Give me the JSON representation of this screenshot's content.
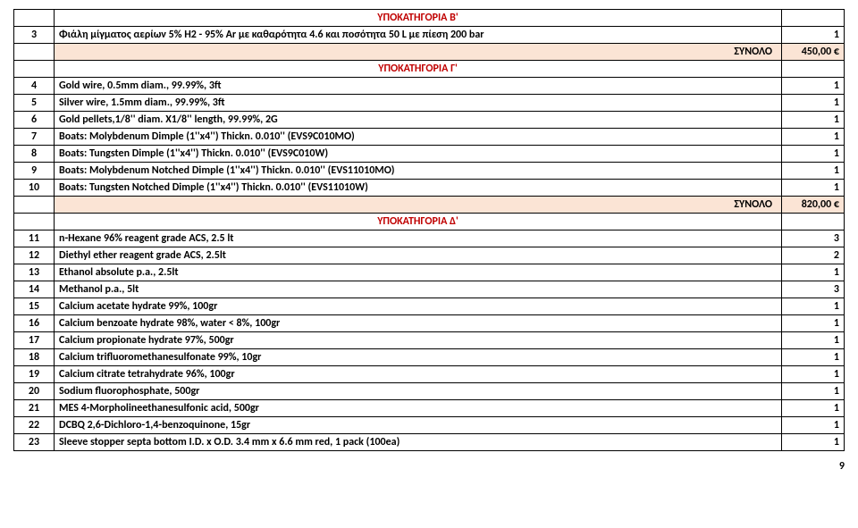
{
  "colors": {
    "header_text": "#c00000",
    "total_bg": "#fbe4d5",
    "border": "#000000"
  },
  "sections": [
    {
      "title": "ΥΠΟΚΑΤΗΓΟΡΙΑ Β'",
      "rows": [
        {
          "num": "3",
          "desc": "Φιάλη μίγματος αερίων 5% Η2 - 95% Ar με καθαρότητα 4.6 και ποσότητα 50 L με πίεση  200 bar",
          "qty": "1"
        }
      ],
      "total_label": "ΣΥΝΟΛΟ",
      "total_value": "450,00 €"
    },
    {
      "title": "ΥΠΟΚΑΤΗΓΟΡΙΑ Γ'",
      "rows": [
        {
          "num": "4",
          "desc": "Gold wire, 0.5mm diam., 99.99%, 3ft",
          "qty": "1"
        },
        {
          "num": "5",
          "desc": "Silver wire, 1.5mm diam., 99.99%, 3ft",
          "qty": "1"
        },
        {
          "num": "6",
          "desc": "Gold pellets,1/8'' diam. X1/8'' length, 99.99%, 2G",
          "qty": "1"
        },
        {
          "num": "7",
          "desc": "Boats: Molybdenum Dimple (1''x4'') Thickn. 0.010'' (EVS9C010MO)",
          "qty": "1"
        },
        {
          "num": "8",
          "desc": "Boats: Tungsten Dimple (1''x4'') Thickn. 0.010'' (EVS9C010W)",
          "qty": "1"
        },
        {
          "num": "9",
          "desc": "Boats: Molybdenum Notched Dimple (1''x4'') Thickn. 0.010'' (EVS11010MO)",
          "qty": "1"
        },
        {
          "num": "10",
          "desc": "Boats: Tungsten Notched Dimple (1''x4'') Thickn. 0.010'' (EVS11010W)",
          "qty": "1"
        }
      ],
      "total_label": "ΣΥΝΟΛΟ",
      "total_value": "820,00 €"
    },
    {
      "title": "ΥΠΟΚΑΤΗΓΟΡΙΑ Δ'",
      "rows": [
        {
          "num": "11",
          "desc": "n-Hexane 96% reagent grade ACS, 2.5 lt",
          "qty": "3"
        },
        {
          "num": "12",
          "desc": "Diethyl ether reagent grade ACS, 2.5lt",
          "qty": "2"
        },
        {
          "num": "13",
          "desc": "Ethanol absolute p.a., 2.5lt",
          "qty": "1"
        },
        {
          "num": "14",
          "desc": "Methanol p.a., 5lt",
          "qty": "3"
        },
        {
          "num": "15",
          "desc": "Calcium acetate hydrate 99%, 100gr",
          "qty": "1"
        },
        {
          "num": "16",
          "desc": "Calcium benzoate hydrate 98%, water < 8%, 100gr",
          "qty": "1"
        },
        {
          "num": "17",
          "desc": "Calcium propionate hydrate 97%, 500gr",
          "qty": "1"
        },
        {
          "num": "18",
          "desc": "Calcium trifluoromethanesulfonate 99%, 10gr",
          "qty": "1"
        },
        {
          "num": "19",
          "desc": "Calcium citrate tetrahydrate 96%, 100gr",
          "qty": "1"
        },
        {
          "num": "20",
          "desc": "Sodium fluorophosphate, 500gr",
          "qty": "1"
        },
        {
          "num": "21",
          "desc": "MES 4-Morpholineethanesulfonic acid, 500gr",
          "qty": "1"
        },
        {
          "num": "22",
          "desc": "DCBQ 2,6-Dichloro-1,4-benzoquinone, 15gr",
          "qty": "1"
        },
        {
          "num": "23",
          "desc": "Sleeve stopper septa bottom I.D. x O.D. 3.4 mm x 6.6 mm red, 1 pack (100ea)",
          "qty": "1"
        }
      ]
    }
  ],
  "page_number": "9"
}
